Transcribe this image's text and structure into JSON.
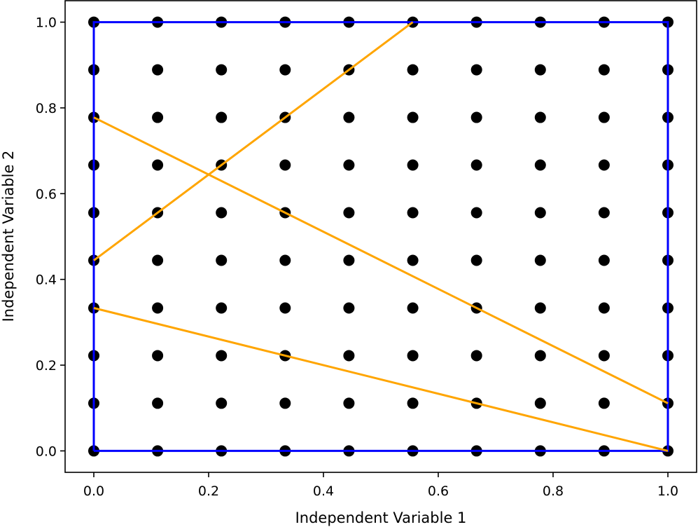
{
  "chart_data": {
    "type": "scatter",
    "title": "",
    "xlabel": "Independent Variable 1",
    "ylabel": "Independent Variable 2",
    "xlim": [
      -0.05,
      1.05
    ],
    "ylim": [
      -0.05,
      1.05
    ],
    "xticks": [
      "0.0",
      "0.2",
      "0.4",
      "0.6",
      "0.8",
      "1.0"
    ],
    "yticks": [
      "0.0",
      "0.2",
      "0.4",
      "0.6",
      "0.8",
      "1.0"
    ],
    "grid": false,
    "grid_points": {
      "x": [
        0,
        0.1111,
        0.2222,
        0.3333,
        0.4444,
        0.5556,
        0.6667,
        0.7778,
        0.8889,
        1.0
      ],
      "y": [
        0,
        0.1111,
        0.2222,
        0.3333,
        0.4444,
        0.5556,
        0.6667,
        0.7778,
        0.8889,
        1.0
      ],
      "color": "#000000"
    },
    "boundary": {
      "x": [
        0,
        1,
        1,
        0,
        0
      ],
      "y": [
        0,
        0,
        1,
        1,
        0
      ],
      "color": "#0000ff"
    },
    "lines": [
      {
        "x": [
          0,
          0.5556
        ],
        "y": [
          0.4444,
          1.0
        ],
        "color": "#ffa500"
      },
      {
        "x": [
          0,
          1.0
        ],
        "y": [
          0.7778,
          0.1111
        ],
        "color": "#ffa500"
      },
      {
        "x": [
          0,
          1.0
        ],
        "y": [
          0.3333,
          0.0
        ],
        "color": "#ffa500"
      }
    ]
  }
}
